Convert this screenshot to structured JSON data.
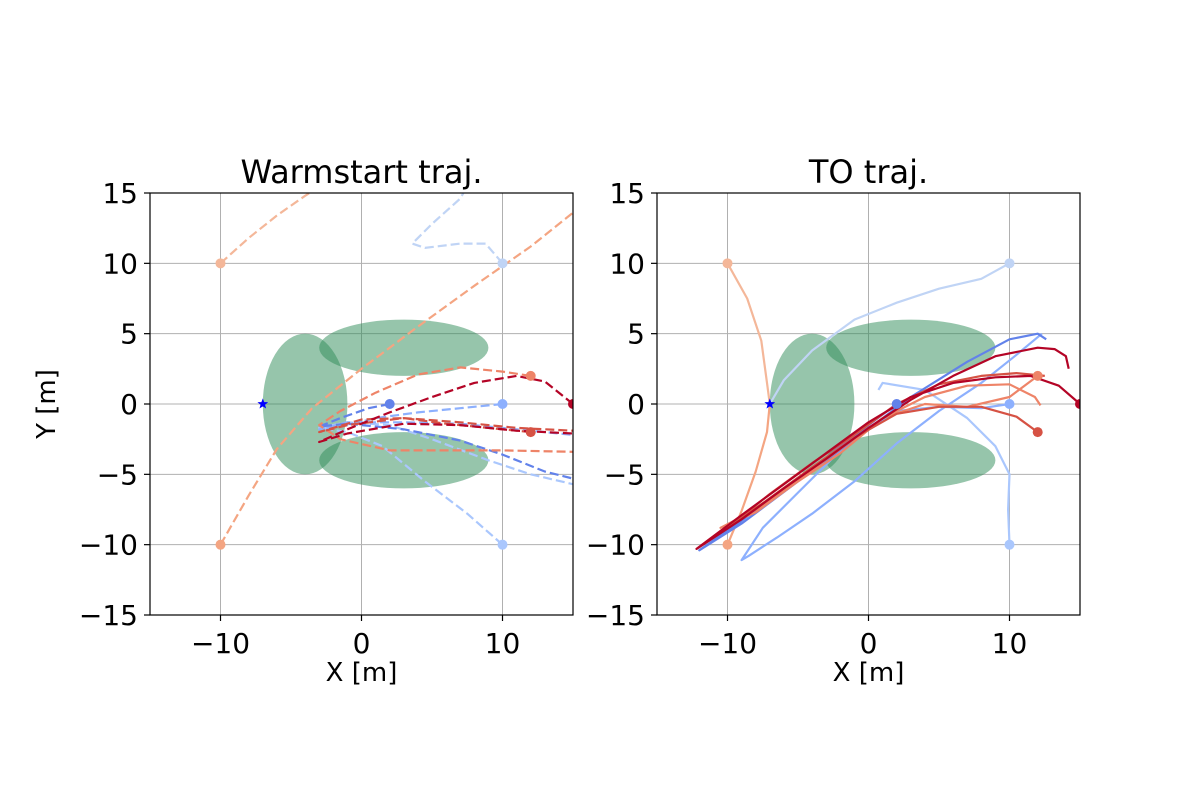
{
  "chart_data": [
    {
      "type": "line",
      "title": "Warmstart traj.",
      "xlabel": "X [m]",
      "ylabel": "Y [m]",
      "xlim": [
        -15,
        15
      ],
      "ylim": [
        -15,
        15
      ],
      "xticks": [
        -10,
        0,
        10
      ],
      "yticks": [
        -15,
        -10,
        -5,
        0,
        5,
        10,
        15
      ],
      "xtick_labels": [
        "−10",
        "0",
        "10"
      ],
      "ytick_labels": [
        "−15",
        "−10",
        "−5",
        "0",
        "5",
        "10",
        "15"
      ],
      "grid": true,
      "line_style": "dashed",
      "obstacles": [
        {
          "cx": -4,
          "cy": 0,
          "rx": 3,
          "ry": 5
        },
        {
          "cx": 3,
          "cy": 4,
          "rx": 6,
          "ry": 2
        },
        {
          "cx": 3,
          "cy": -4,
          "rx": 6,
          "ry": 2
        }
      ],
      "goal": {
        "x": -7,
        "y": 0
      },
      "series": [
        {
          "color": "#f4b799",
          "start": [
            -10,
            10
          ],
          "points": [
            [
              -10,
              10
            ],
            [
              -8,
              11.8
            ],
            [
              -6,
              13.4
            ],
            [
              -4,
              14.8
            ],
            [
              -3.2,
              15.3
            ]
          ]
        },
        {
          "color": "#f4a582",
          "start": [
            -10,
            -10
          ],
          "points": [
            [
              -10,
              -10
            ],
            [
              -8,
              -6.5
            ],
            [
              -6,
              -3.2
            ],
            [
              -3.5,
              -0.3
            ],
            [
              0,
              2.5
            ],
            [
              4,
              5.5
            ],
            [
              8,
              8.4
            ],
            [
              12,
              11.2
            ],
            [
              15,
              13.6
            ]
          ]
        },
        {
          "color": "#c0d4f5",
          "start": [
            10,
            10
          ],
          "points": [
            [
              10,
              10
            ],
            [
              8.8,
              11.4
            ],
            [
              7,
              11.4
            ],
            [
              4.5,
              11.1
            ],
            [
              3.6,
              11.4
            ],
            [
              5,
              12.8
            ],
            [
              7,
              14.6
            ],
            [
              7.4,
              15.3
            ]
          ]
        },
        {
          "color": "#aac7fd",
          "start": [
            10,
            -10
          ],
          "points": [
            [
              10,
              -10
            ],
            [
              7.5,
              -7.8
            ],
            [
              4.5,
              -5.5
            ],
            [
              1.5,
              -3
            ],
            [
              -1,
              -2
            ],
            [
              -3,
              -1.7
            ],
            [
              -1,
              -1.3
            ],
            [
              2,
              -1.5
            ],
            [
              5,
              -2.5
            ],
            [
              9,
              -4
            ],
            [
              12,
              -5
            ],
            [
              15,
              -5.7
            ]
          ]
        },
        {
          "color": "#8db0fe",
          "start": [
            10,
            0
          ],
          "points": [
            [
              10,
              0
            ],
            [
              7,
              -0.3
            ],
            [
              4,
              -0.6
            ],
            [
              1,
              -1
            ],
            [
              -1,
              -1.5
            ],
            [
              -3,
              -1.8
            ],
            [
              -1,
              -1.3
            ],
            [
              3,
              -1.3
            ],
            [
              7,
              -1.4
            ],
            [
              11,
              -1.8
            ],
            [
              15,
              -2.2
            ]
          ]
        },
        {
          "color": "#6282ea",
          "start": [
            2,
            0
          ],
          "points": [
            [
              2,
              0
            ],
            [
              0.5,
              -0.3
            ],
            [
              -1.5,
              -1
            ],
            [
              -3,
              -1.6
            ],
            [
              -1,
              -1.4
            ],
            [
              3,
              -1.8
            ],
            [
              7,
              -2.6
            ],
            [
              10,
              -3.6
            ],
            [
              13,
              -4.8
            ],
            [
              15,
              -5.3
            ]
          ]
        },
        {
          "color": "#ee8468",
          "start": [
            12,
            2
          ],
          "points": [
            [
              12,
              2
            ],
            [
              10,
              2.3
            ],
            [
              7,
              2.6
            ],
            [
              4,
              2.1
            ],
            [
              1,
              0.8
            ],
            [
              -1.5,
              -0.5
            ],
            [
              -3,
              -1.5
            ],
            [
              -1.5,
              -2.5
            ],
            [
              2,
              -3.3
            ],
            [
              6,
              -3.3
            ],
            [
              10,
              -3.3
            ],
            [
              15,
              -3.4
            ]
          ]
        },
        {
          "color": "#d65244",
          "start": [
            12,
            -2
          ],
          "points": [
            [
              12,
              -2
            ],
            [
              9,
              -1.7
            ],
            [
              6,
              -1.4
            ],
            [
              3,
              -1
            ],
            [
              0,
              -1.1
            ],
            [
              -3,
              -2
            ],
            [
              -1,
              -1.5
            ],
            [
              3,
              -1
            ],
            [
              7,
              -1.3
            ],
            [
              11,
              -1.7
            ],
            [
              15,
              -1.9
            ]
          ]
        },
        {
          "color": "#b40426",
          "start": [
            15,
            0
          ],
          "points": [
            [
              15,
              0
            ],
            [
              13,
              1.6
            ],
            [
              11,
              2
            ],
            [
              8,
              1.5
            ],
            [
              5,
              0.5
            ],
            [
              2,
              -0.6
            ],
            [
              -1,
              -1.8
            ],
            [
              -3,
              -2.7
            ],
            [
              -1,
              -2.1
            ],
            [
              3,
              -1.4
            ],
            [
              7,
              -1.5
            ],
            [
              11,
              -1.9
            ],
            [
              15,
              -2.1
            ]
          ]
        }
      ]
    },
    {
      "type": "line",
      "title": "TO traj.",
      "xlabel": "X [m]",
      "ylabel": "",
      "xlim": [
        -15,
        15
      ],
      "ylim": [
        -15,
        15
      ],
      "xticks": [
        -10,
        0,
        10
      ],
      "yticks": [
        -15,
        -10,
        -5,
        0,
        5,
        10,
        15
      ],
      "xtick_labels": [
        "−10",
        "0",
        "10"
      ],
      "ytick_labels": [
        "−15",
        "−10",
        "−5",
        "0",
        "5",
        "10",
        "15"
      ],
      "grid": true,
      "line_style": "solid",
      "obstacles": [
        {
          "cx": -4,
          "cy": 0,
          "rx": 3,
          "ry": 5
        },
        {
          "cx": 3,
          "cy": 4,
          "rx": 6,
          "ry": 2
        },
        {
          "cx": 3,
          "cy": -4,
          "rx": 6,
          "ry": 2
        }
      ],
      "goal": {
        "x": -7,
        "y": 0
      },
      "series": [
        {
          "color": "#f4b799",
          "start": [
            -10,
            10
          ],
          "points": [
            [
              -10,
              10
            ],
            [
              -8.6,
              7.5
            ],
            [
              -7.6,
              4.5
            ],
            [
              -7.2,
              1.5
            ],
            [
              -7,
              0
            ]
          ]
        },
        {
          "color": "#c0d4f5",
          "start": [
            10,
            10
          ],
          "points": [
            [
              10,
              10
            ],
            [
              8,
              8.9
            ],
            [
              5,
              8.2
            ],
            [
              2,
              7.2
            ],
            [
              -1,
              6
            ],
            [
              -4,
              3.8
            ],
            [
              -6,
              1.7
            ],
            [
              -7,
              0
            ]
          ]
        },
        {
          "color": "#f4a582",
          "start": [
            -10,
            -10
          ],
          "points": [
            [
              -10,
              -10
            ],
            [
              -9,
              -7.6
            ],
            [
              -8,
              -4.8
            ],
            [
              -7.2,
              -2
            ],
            [
              -7,
              0
            ]
          ]
        },
        {
          "color": "#aac7fd",
          "start": [
            10,
            -10
          ],
          "points": [
            [
              10,
              -10
            ],
            [
              9.9,
              -7.5
            ],
            [
              10,
              -5
            ],
            [
              9,
              -3
            ],
            [
              7,
              -1
            ],
            [
              4,
              1
            ],
            [
              1,
              1.5
            ],
            [
              0.7,
              1
            ]
          ]
        },
        {
          "color": "#8db0fe",
          "start": [
            10,
            0
          ],
          "points": [
            [
              10,
              0
            ],
            [
              8,
              -0.3
            ],
            [
              5,
              -0.2
            ],
            [
              2,
              -0.5
            ],
            [
              0,
              -1.8
            ],
            [
              -2.5,
              -3.8
            ],
            [
              -5,
              -6.3
            ],
            [
              -7.5,
              -8.8
            ],
            [
              -9,
              -11.1
            ],
            [
              -8.5,
              -10.8
            ],
            [
              -6.5,
              -9.5
            ],
            [
              -4,
              -7.8
            ],
            [
              -1,
              -5.5
            ],
            [
              2,
              -2.8
            ],
            [
              5,
              -0.5
            ],
            [
              8,
              1.5
            ],
            [
              10.5,
              3.5
            ],
            [
              12.3,
              5
            ]
          ]
        },
        {
          "color": "#6282ea",
          "start": [
            2,
            0
          ],
          "points": [
            [
              2,
              0
            ],
            [
              0,
              -1.5
            ],
            [
              -3,
              -3.8
            ],
            [
              -6,
              -6
            ],
            [
              -9,
              -8.3
            ],
            [
              -12,
              -10.4
            ],
            [
              -9,
              -8.5
            ],
            [
              -5,
              -5.5
            ],
            [
              -1,
              -2.5
            ],
            [
              3,
              0.5
            ],
            [
              7,
              3
            ],
            [
              10,
              4.6
            ],
            [
              12,
              5
            ],
            [
              12.6,
              4.6
            ]
          ]
        },
        {
          "color": "#ee8468",
          "start": [
            12,
            2
          ],
          "points": [
            [
              12,
              2
            ],
            [
              10,
              0.5
            ],
            [
              7,
              -0.2
            ],
            [
              4,
              0
            ],
            [
              1,
              -1
            ],
            [
              -2,
              -3.5
            ],
            [
              -5,
              -5.5
            ],
            [
              -8,
              -7.7
            ],
            [
              -10.5,
              -8.8
            ],
            [
              -8,
              -7.5
            ],
            [
              -5,
              -5.4
            ],
            [
              -2,
              -3.2
            ],
            [
              1,
              -1
            ],
            [
              4,
              0.5
            ],
            [
              7,
              1.3
            ],
            [
              10,
              1.4
            ],
            [
              11.8,
              0.5
            ],
            [
              12.2,
              -0.1
            ]
          ]
        },
        {
          "color": "#d65244",
          "start": [
            12,
            -2
          ],
          "points": [
            [
              12,
              -2
            ],
            [
              10.5,
              -0.9
            ],
            [
              8,
              -0.2
            ],
            [
              5,
              -0.2
            ],
            [
              2,
              -0.7
            ],
            [
              -1,
              -2.4
            ],
            [
              -4,
              -4.5
            ],
            [
              -7,
              -6.7
            ],
            [
              -10,
              -8.8
            ],
            [
              -7,
              -6.4
            ],
            [
              -4,
              -4.2
            ],
            [
              -1,
              -2.2
            ],
            [
              2,
              0
            ],
            [
              5,
              1.4
            ],
            [
              8,
              2
            ],
            [
              10.5,
              2.2
            ],
            [
              12.5,
              2
            ]
          ]
        },
        {
          "color": "#b40426",
          "start": [
            15,
            0
          ],
          "points": [
            [
              15,
              0
            ],
            [
              13.5,
              1.3
            ],
            [
              11.5,
              2
            ],
            [
              9,
              1.9
            ],
            [
              6,
              1.5
            ],
            [
              3,
              0.5
            ],
            [
              0,
              -1.3
            ],
            [
              -3,
              -3.5
            ],
            [
              -6,
              -5.7
            ],
            [
              -9,
              -7.9
            ],
            [
              -12.2,
              -10.3
            ],
            [
              -9,
              -8.2
            ],
            [
              -6,
              -6
            ],
            [
              -3,
              -3.9
            ],
            [
              0,
              -1.7
            ],
            [
              3,
              0.3
            ],
            [
              6,
              2
            ],
            [
              9,
              3.4
            ],
            [
              12,
              4
            ],
            [
              13.2,
              3.9
            ],
            [
              14,
              3.4
            ],
            [
              14.2,
              2.5
            ]
          ]
        }
      ]
    }
  ]
}
